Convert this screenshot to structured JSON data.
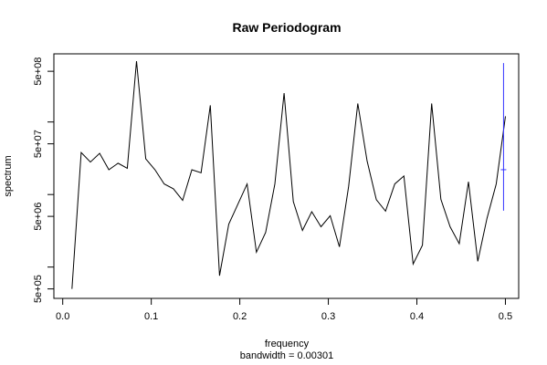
{
  "chart_data": {
    "type": "line",
    "title": "Raw Periodogram",
    "xlabel": "frequency",
    "sublabel": "bandwidth = 0.00301",
    "ylabel": "spectrum",
    "y_scale": "log",
    "xlim": [
      -0.01,
      0.515
    ],
    "ylim": [
      370000,
      870000000
    ],
    "x_ticks": [
      0.0,
      0.1,
      0.2,
      0.3,
      0.4,
      0.5
    ],
    "x_tick_labels": [
      "0.0",
      "0.1",
      "0.2",
      "0.3",
      "0.4",
      "0.5"
    ],
    "y_ticks": [
      500000,
      5000000,
      50000000,
      500000000
    ],
    "y_tick_labels": [
      "5e+05",
      "5e+06",
      "5e+07",
      "5e+08"
    ],
    "y_minor_ticks": [
      1000000,
      10000000,
      100000000
    ],
    "series": [
      {
        "color": "#000000",
        "x": [
          0.0104,
          0.0208,
          0.0313,
          0.0417,
          0.0521,
          0.0625,
          0.0729,
          0.0833,
          0.0938,
          0.1042,
          0.1146,
          0.125,
          0.1354,
          0.1458,
          0.1563,
          0.1667,
          0.1771,
          0.1875,
          0.1979,
          0.2083,
          0.2188,
          0.2292,
          0.2396,
          0.25,
          0.2604,
          0.2708,
          0.2813,
          0.2917,
          0.3021,
          0.3125,
          0.3229,
          0.3333,
          0.3438,
          0.3542,
          0.3646,
          0.375,
          0.3854,
          0.3958,
          0.4063,
          0.4167,
          0.4271,
          0.4375,
          0.4479,
          0.4583,
          0.4688,
          0.4792,
          0.4896,
          0.5
        ],
        "y": [
          500000,
          38000000,
          28000000,
          37000000,
          22000000,
          27000000,
          23000000,
          690000000,
          31000000,
          22000000,
          14000000,
          12000000,
          8300000,
          22000000,
          20000000,
          170000000,
          760000,
          3900000,
          7400000,
          14000000,
          1600000,
          3000000,
          14000000,
          250000000,
          8000000,
          3200000,
          5800000,
          3600000,
          5100000,
          1900000,
          13000000,
          180000000,
          29000000,
          8500000,
          5900000,
          14000000,
          18000000,
          1100000,
          2000000,
          180000000,
          8600000,
          3600000,
          2100000,
          15000000,
          1200000,
          4700000,
          14000000,
          120000000
        ]
      }
    ],
    "error_bar": {
      "color": "#3333ff",
      "x": 0.4979,
      "center": 22000000,
      "low": 6000000,
      "high": 650000000
    }
  }
}
